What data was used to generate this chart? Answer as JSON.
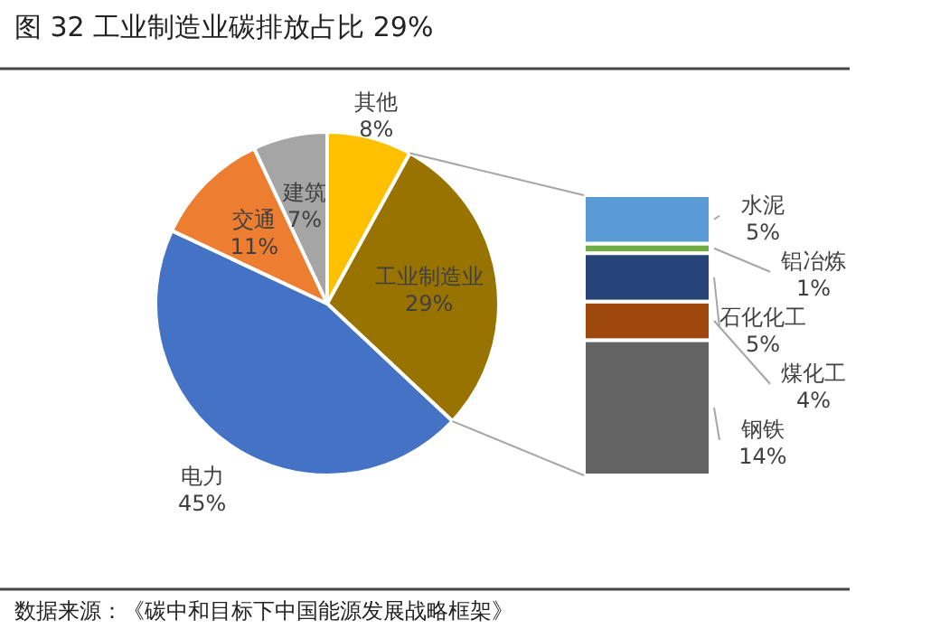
{
  "chart_data": [
    {
      "type": "pie",
      "title": "图 32 工业制造业碳排放占比 29%",
      "annotations": [
        "数据来源：《碳中和目标下中国能源发展战略框架》"
      ],
      "categories": [
        "其他",
        "工业制造业",
        "电力",
        "交通",
        "建筑"
      ],
      "values": [
        8,
        29,
        45,
        11,
        7
      ],
      "colors": [
        "#ffc000",
        "#997300",
        "#4472c4",
        "#ed7d31",
        "#a5a5a5"
      ],
      "value_labels": [
        "8%",
        "29%",
        "45%",
        "11%",
        "7%"
      ]
    },
    {
      "type": "bar",
      "stacked": true,
      "categories": [
        null
      ],
      "series": [
        {
          "name": "钢铁",
          "color": "#636363",
          "values": [
            14
          ],
          "value_labels": [
            "14%"
          ]
        },
        {
          "name": "煤化工",
          "color": "#9e480e",
          "values": [
            4
          ],
          "value_labels": [
            "4%"
          ]
        },
        {
          "name": "石化化工",
          "color": "#264478",
          "values": [
            5
          ],
          "value_labels": [
            "5%"
          ]
        },
        {
          "name": "铝冶炼",
          "color": "#70ad47",
          "values": [
            1
          ],
          "value_labels": [
            "1%"
          ]
        },
        {
          "name": "水泥",
          "color": "#5b9bd5",
          "values": [
            5
          ],
          "value_labels": [
            "5%"
          ]
        }
      ]
    }
  ]
}
